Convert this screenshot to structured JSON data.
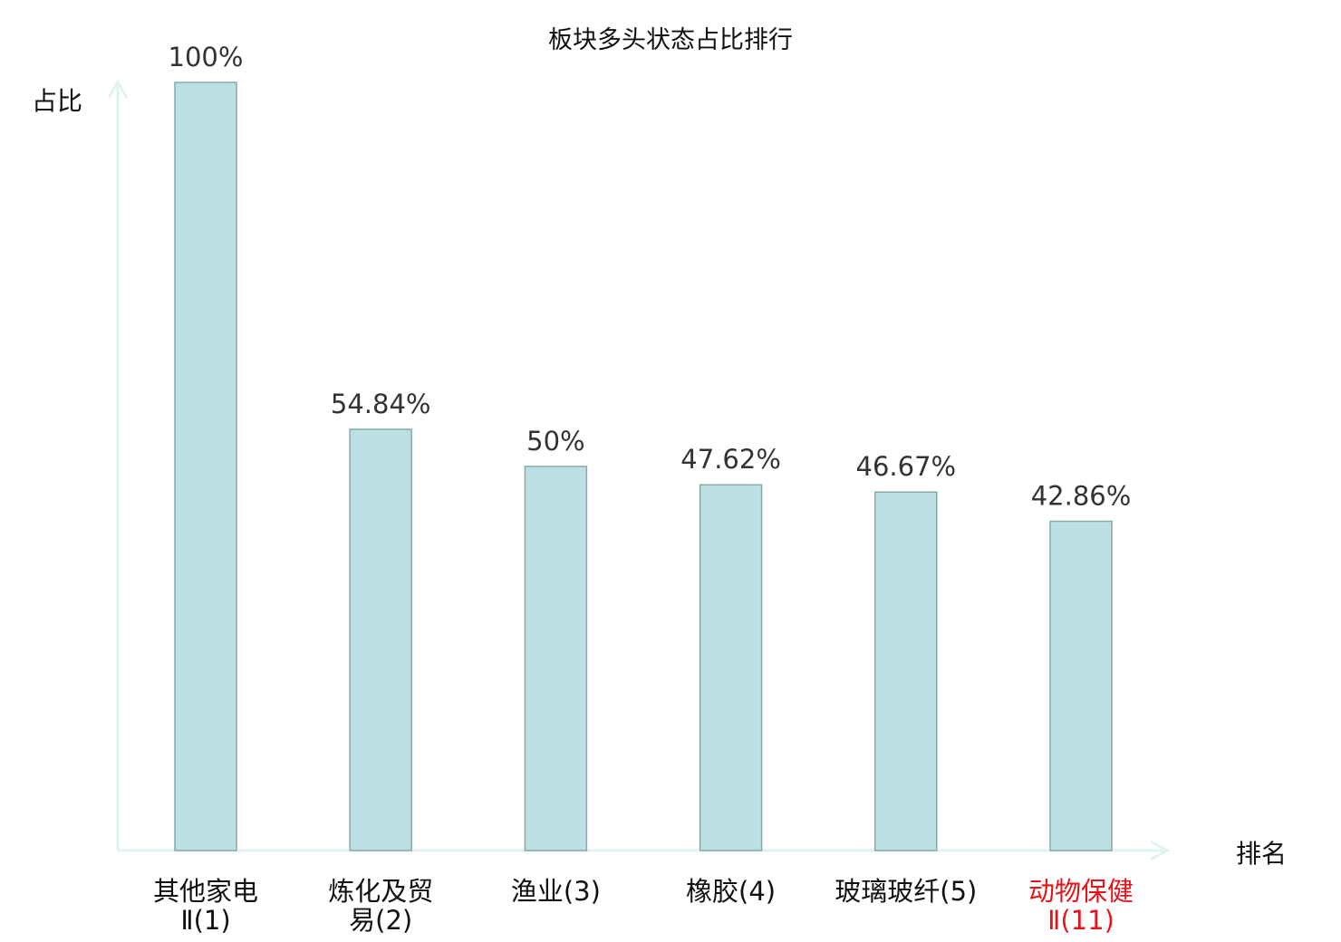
{
  "chart_data": {
    "type": "bar",
    "title": "板块多头状态占比排行",
    "ylabel": "占比",
    "xlabel": "排名",
    "ylim": [
      0,
      100
    ],
    "grid": false,
    "categories": [
      {
        "line1": "其他家电",
        "line2": "Ⅱ(1)",
        "highlight": false
      },
      {
        "line1": "炼化及贸",
        "line2": "易(2)",
        "highlight": false
      },
      {
        "line1": "渔业(3)",
        "line2": "",
        "highlight": false
      },
      {
        "line1": "橡胶(4)",
        "line2": "",
        "highlight": false
      },
      {
        "line1": "玻璃玻纤(5)",
        "line2": "",
        "highlight": false
      },
      {
        "line1": "动物保健",
        "line2": "Ⅱ(11)",
        "highlight": true
      }
    ],
    "values": [
      100,
      54.84,
      50,
      47.62,
      46.67,
      42.86
    ],
    "labels": [
      "100%",
      "54.84%",
      "50%",
      "47.62%",
      "46.67%",
      "42.86%"
    ],
    "colors": {
      "bar": "#bce0e3",
      "bar_border": "#8aa8aa",
      "axis": "#dff3f1",
      "highlight": "#e8141b",
      "text": "#222222"
    }
  }
}
